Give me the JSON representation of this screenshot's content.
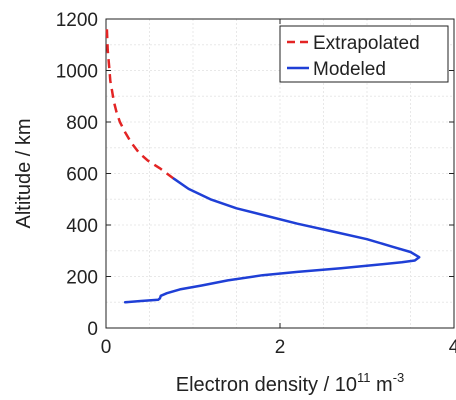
{
  "chart_data": {
    "type": "line",
    "title": "",
    "xlabel": "Electron density / 10",
    "xlabel_exp": "11",
    "xlabel_unit": " m",
    "xlabel_unit_exp": "-3",
    "ylabel": "Altitude / km",
    "xlim": [
      0,
      4
    ],
    "ylim": [
      0,
      1200
    ],
    "xticks": [
      0,
      2,
      4
    ],
    "yticks": [
      0,
      200,
      400,
      600,
      800,
      1000,
      1200
    ],
    "grid": true,
    "legend_position": "top-right",
    "series": [
      {
        "name": "Extrapolated",
        "color": "#e32424",
        "style": "dashed",
        "x": [
          0.78,
          0.62,
          0.48,
          0.38,
          0.29,
          0.22,
          0.16,
          0.12,
          0.09,
          0.07,
          0.05,
          0.04,
          0.03,
          0.02,
          0.015,
          0.01
        ],
        "y": [
          580,
          620,
          650,
          680,
          720,
          760,
          800,
          840,
          880,
          920,
          960,
          1000,
          1040,
          1080,
          1120,
          1160
        ]
      },
      {
        "name": "Modeled",
        "color": "#1f3fd6",
        "style": "solid",
        "x": [
          0.78,
          0.95,
          1.2,
          1.5,
          1.85,
          2.2,
          2.6,
          3.0,
          3.3,
          3.5,
          3.6,
          3.55,
          3.4,
          3.1,
          2.7,
          2.2,
          1.8,
          1.4,
          1.1,
          0.85,
          0.7,
          0.63,
          0.62,
          0.6,
          0.4,
          0.22
        ],
        "y": [
          580,
          540,
          500,
          465,
          435,
          405,
          375,
          345,
          315,
          295,
          275,
          262,
          255,
          245,
          232,
          218,
          205,
          185,
          165,
          150,
          135,
          125,
          115,
          110,
          105,
          100
        ]
      }
    ]
  }
}
